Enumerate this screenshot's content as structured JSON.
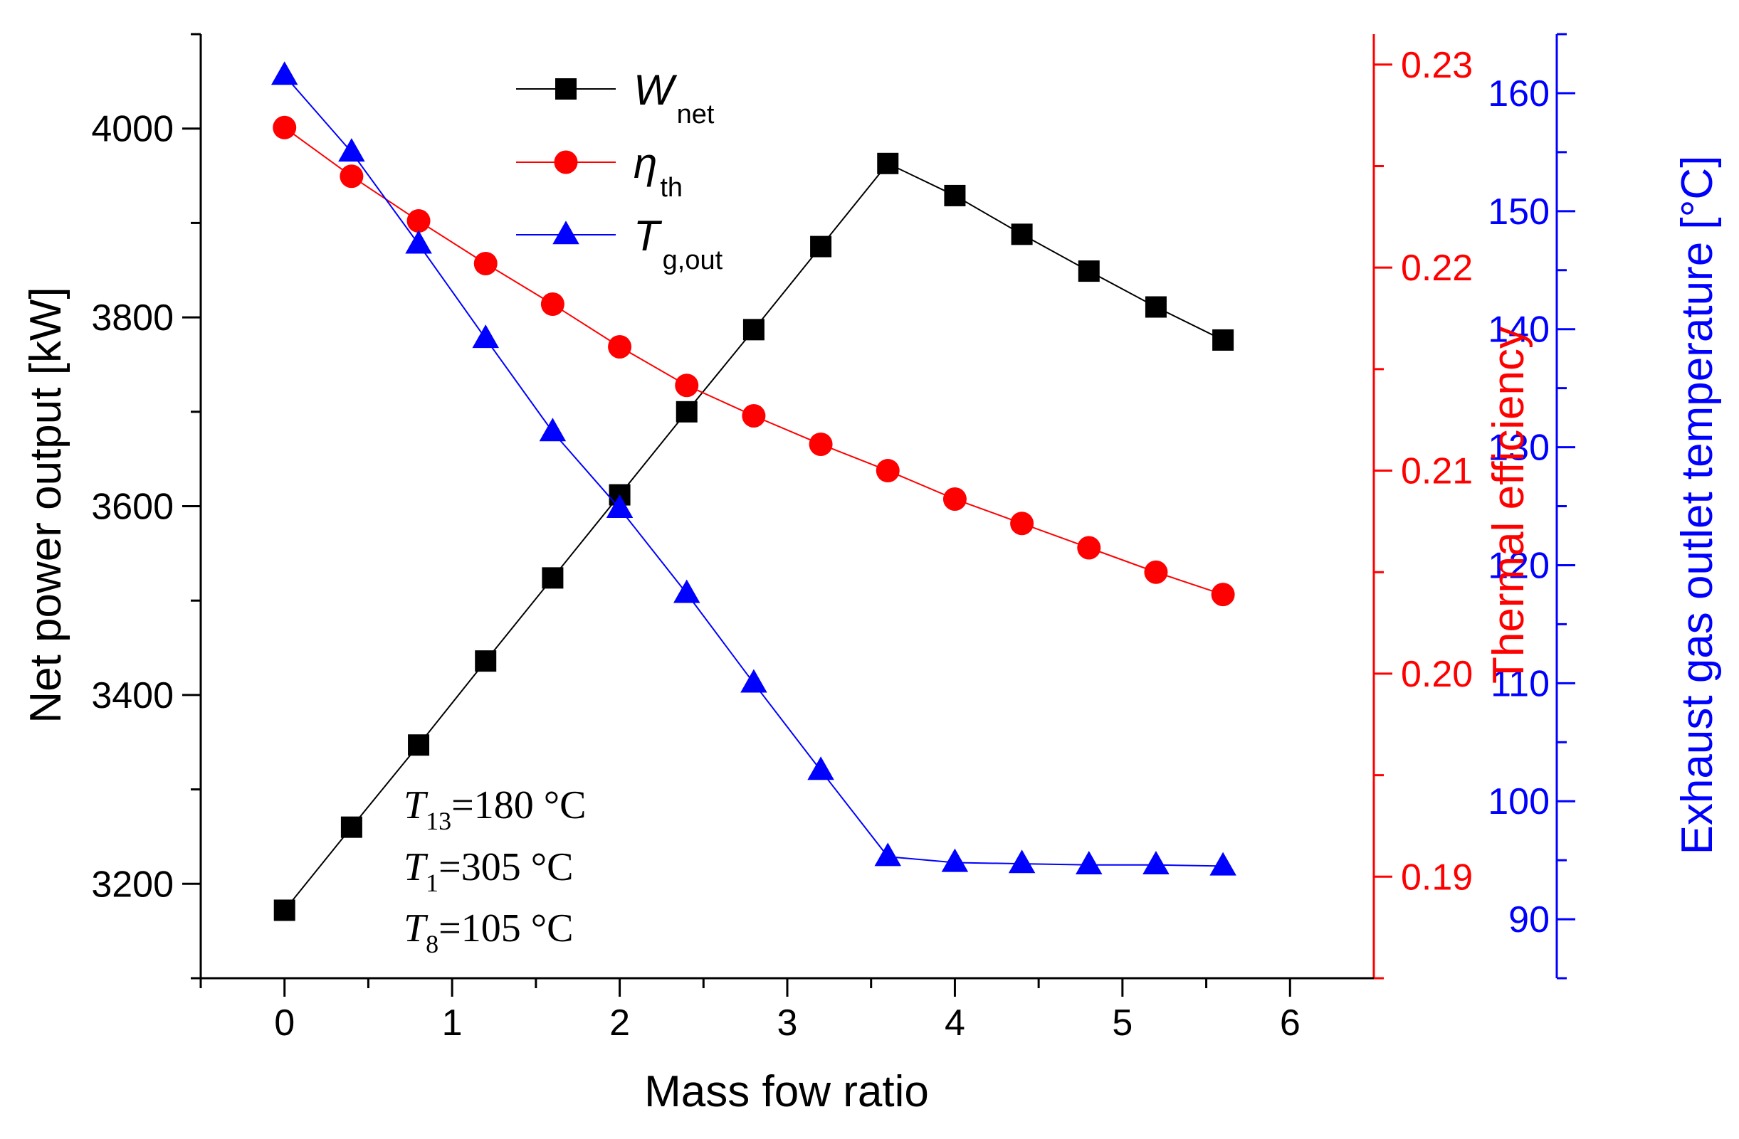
{
  "chart_data": {
    "type": "line",
    "xlabel": "Mass fow ratio",
    "xlim": [
      -0.5,
      6.5
    ],
    "xticks": [
      0,
      1,
      2,
      3,
      4,
      5,
      6
    ],
    "x": [
      0,
      0.4,
      0.8,
      1.2,
      1.6,
      2.0,
      2.4,
      2.8,
      3.2,
      3.6,
      4.0,
      4.4,
      4.8,
      5.2,
      5.6
    ],
    "axes": {
      "left": {
        "label": "Net power output [kW]",
        "ylim": [
          3100,
          4100
        ],
        "ticks": [
          3200,
          3400,
          3600,
          3800,
          4000
        ],
        "color": "#000000"
      },
      "right1": {
        "label": "Thermal efficiency",
        "ylim": [
          0.185,
          0.2315
        ],
        "ticks": [
          "0.19",
          "0.20",
          "0.21",
          "0.22",
          "0.23"
        ],
        "color": "#ff0000"
      },
      "right2": {
        "label": "Exhaust gas outlet temperature [°C]",
        "ylim": [
          85,
          165
        ],
        "ticks": [
          90,
          100,
          110,
          120,
          130,
          140,
          150,
          160
        ],
        "color": "#0000ff"
      }
    },
    "series": [
      {
        "name": "W",
        "sub": "net",
        "axis": "left",
        "color": "#000000",
        "marker": "square",
        "values": [
          3172,
          3260,
          3347,
          3436,
          3524,
          3612,
          3700,
          3787,
          3875,
          3963,
          3929,
          3888,
          3849,
          3811,
          3776
        ]
      },
      {
        "name": "η",
        "sub": "th",
        "axis": "right1",
        "color": "#ff0000",
        "marker": "circle",
        "values": [
          0.2269,
          0.2245,
          0.2223,
          0.2202,
          0.2182,
          0.2161,
          0.2142,
          0.2127,
          0.2113,
          0.21,
          0.2086,
          0.2074,
          0.2062,
          0.205,
          0.2039
        ]
      },
      {
        "name": "T",
        "sub": "g,out",
        "axis": "right2",
        "color": "#0000ff",
        "marker": "triangle",
        "values": [
          161.5,
          155.0,
          147.2,
          139.2,
          131.3,
          124.8,
          117.6,
          110.0,
          102.6,
          95.3,
          94.8,
          94.7,
          94.6,
          94.6,
          94.5
        ]
      }
    ],
    "annotations": [
      {
        "symbol": "T",
        "sub": "13",
        "text": "=180 °C"
      },
      {
        "symbol": "T",
        "sub": "1",
        "text": "=305 °C"
      },
      {
        "symbol": "T",
        "sub": "8",
        "text": "=105 °C"
      }
    ],
    "legend_position": "top-center",
    "grid": false
  }
}
